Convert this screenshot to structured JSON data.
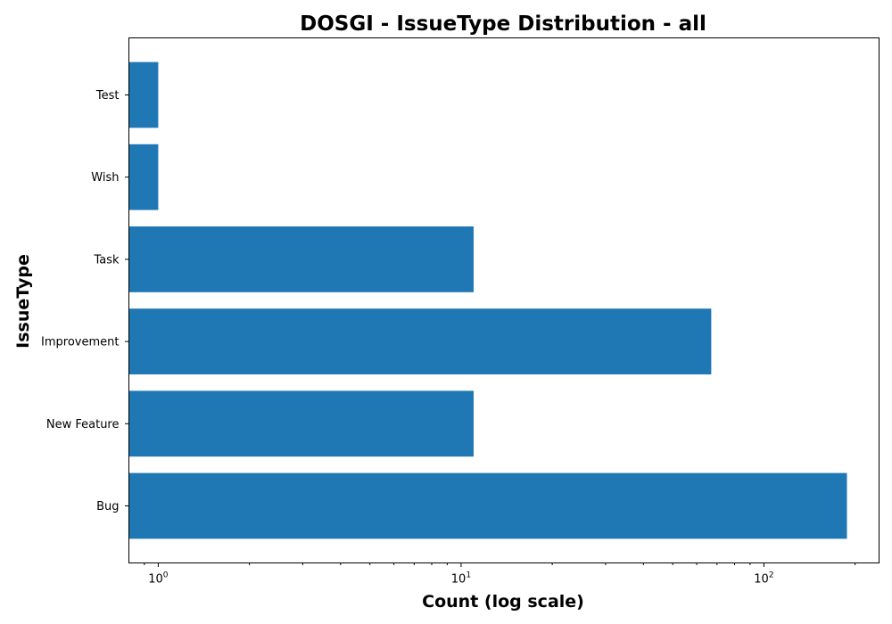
{
  "chart_data": {
    "type": "bar",
    "orientation": "horizontal",
    "title": "DOSGI - IssueType Distribution - all",
    "xlabel": "Count (log scale)",
    "ylabel": "IssueType",
    "xscale": "log",
    "xlim": [
      0.8,
      240
    ],
    "x_ticks": [
      {
        "value": 1,
        "base": "10",
        "exp": "0"
      },
      {
        "value": 10,
        "base": "10",
        "exp": "1"
      },
      {
        "value": 100,
        "base": "10",
        "exp": "2"
      }
    ],
    "categories": [
      "Bug",
      "New Feature",
      "Improvement",
      "Task",
      "Wish",
      "Test"
    ],
    "values": [
      188,
      11,
      67,
      11,
      1,
      1
    ],
    "bar_color": "#1f77b4",
    "grid": false
  }
}
